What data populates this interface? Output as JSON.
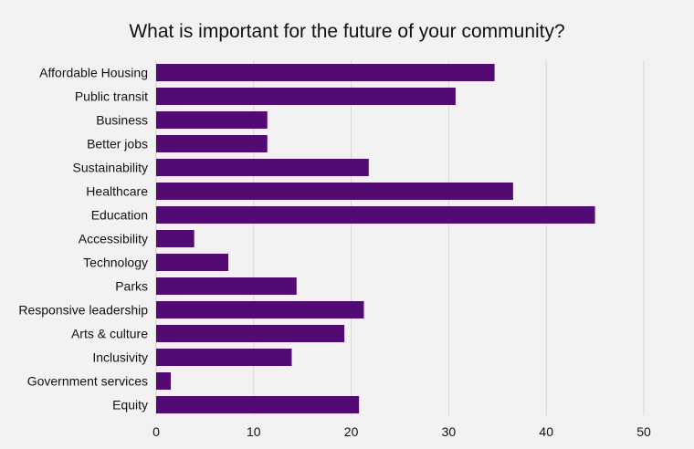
{
  "chart_data": {
    "type": "bar",
    "orientation": "horizontal",
    "title": "What is important for the future of your community?",
    "xlabel": "",
    "ylabel": "",
    "categories": [
      "Affordable Housing",
      "Public transit",
      "Business",
      "Better jobs",
      "Sustainability",
      "Healthcare",
      "Education",
      "Accessibility",
      "Technology",
      "Parks",
      "Responsive leadership",
      "Arts & culture",
      "Inclusivity",
      "Government services",
      "Equity"
    ],
    "values": [
      34.7,
      30.7,
      11.4,
      11.4,
      21.8,
      36.6,
      45.0,
      3.9,
      7.4,
      14.4,
      21.3,
      19.3,
      13.9,
      1.5,
      20.8
    ],
    "xlim": [
      0,
      50
    ],
    "xticks": [
      "0",
      "10",
      "20",
      "30",
      "40",
      "50"
    ],
    "grid": "vertical",
    "legend": "none",
    "colors": {
      "bar": "#520b72",
      "background": "#f2f2f2",
      "grid": "#d6d6d6",
      "text": "#111111"
    }
  }
}
